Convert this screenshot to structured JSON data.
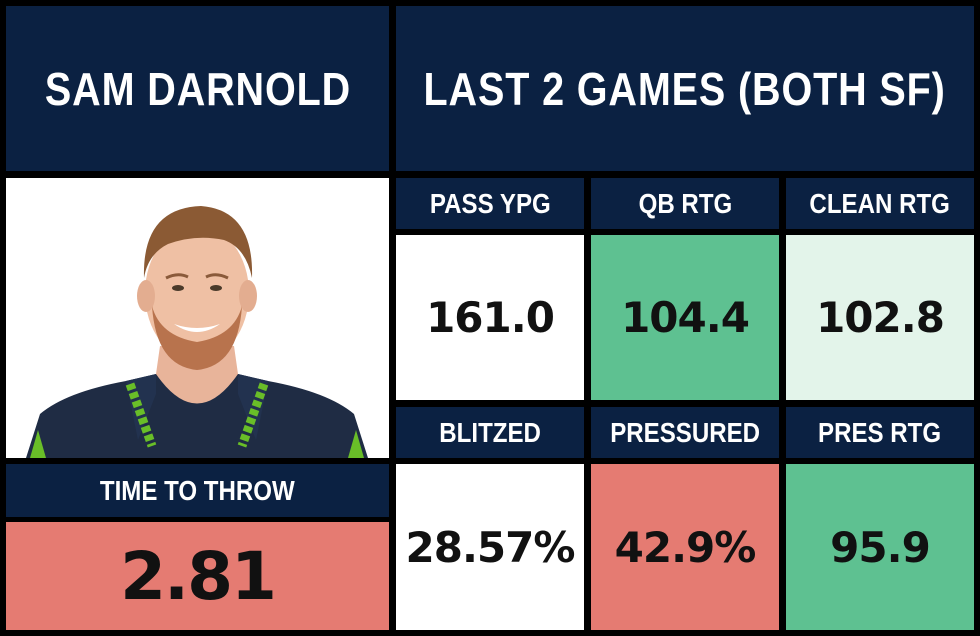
{
  "player": {
    "name": "SAM DARNOLD",
    "photo_alt": "",
    "time_to_throw_label": "TIME TO THROW",
    "time_to_throw_value": "2.81"
  },
  "header": {
    "title": "LAST 2 GAMES (BOTH SF)"
  },
  "stats": [
    {
      "label": "PASS YPG",
      "value": "161.0",
      "bg": "#ffffff"
    },
    {
      "label": "QB RTG",
      "value": "104.4",
      "bg": "#5ec191"
    },
    {
      "label": "CLEAN RTG",
      "value": "102.8",
      "bg": "#e3f4ea"
    },
    {
      "label": "BLITZED",
      "value": "28.57%",
      "bg": "#ffffff"
    },
    {
      "label": "PRESSURED",
      "value": "42.9%",
      "bg": "#e57b72"
    },
    {
      "label": "PRES RTG",
      "value": "95.9",
      "bg": "#5ec191"
    }
  ],
  "colors": {
    "navy": "#0b2142",
    "good": "#5ec191",
    "bad": "#e57b72",
    "light_good": "#e3f4ea",
    "neutral": "#ffffff"
  }
}
